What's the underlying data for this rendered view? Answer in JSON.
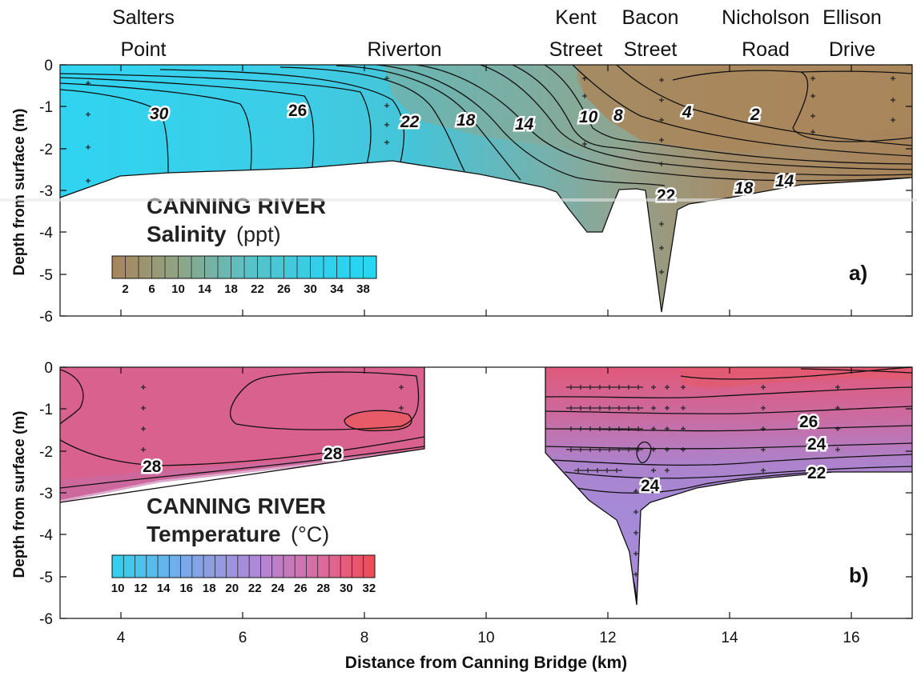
{
  "figure": {
    "x_axis_label": "Distance from Canning Bridge (km)",
    "x_ticks": [
      "4",
      "6",
      "8",
      "10",
      "12",
      "14",
      "16"
    ],
    "stations": [
      {
        "line1": "Salters",
        "line2": "Point",
        "km": 4.4
      },
      {
        "line1": "",
        "line2": "Riverton",
        "km": 8.1
      },
      {
        "line1": "Kent",
        "line2": "Street",
        "km": 11.6
      },
      {
        "line1": "Bacon",
        "line2": "Street",
        "km": 12.9
      },
      {
        "line1": "Nicholson",
        "line2": "Road",
        "km": 14.9
      },
      {
        "line1": "Ellison",
        "line2": "Drive",
        "km": 16.3
      }
    ]
  },
  "panel_a": {
    "title": "CANNING RIVER",
    "variable_bold": "Salinity",
    "variable_unit": "(ppt)",
    "panel_label": "a)",
    "y_axis_label": "Depth from surface (m)",
    "y_ticks": [
      "0",
      "-1",
      "-2",
      "-3",
      "-4",
      "-5",
      "-6"
    ],
    "colorbar_ticks": [
      "2",
      "6",
      "10",
      "14",
      "18",
      "22",
      "26",
      "30",
      "34",
      "38"
    ],
    "contour_labels": [
      "30",
      "26",
      "22",
      "18",
      "14",
      "10",
      "8",
      "4",
      "2",
      "22",
      "18",
      "14"
    ]
  },
  "panel_b": {
    "title": "CANNING RIVER",
    "variable_bold": "Temperature",
    "variable_unit": "(°C)",
    "panel_label": "b)",
    "y_axis_label": "Depth from surface (m)",
    "y_ticks": [
      "0",
      "-1",
      "-2",
      "-3",
      "-4",
      "-5",
      "-6"
    ],
    "colorbar_ticks": [
      "10",
      "12",
      "14",
      "16",
      "18",
      "20",
      "22",
      "24",
      "26",
      "28",
      "30",
      "32"
    ],
    "contour_labels": [
      "28",
      "28",
      "26",
      "24",
      "22",
      "24"
    ]
  },
  "chart_data": [
    {
      "type": "heatmap",
      "title": "CANNING RIVER Salinity (ppt)",
      "xlabel": "Distance from Canning Bridge (km)",
      "ylabel": "Depth from surface (m)",
      "xlim": [
        3,
        17
      ],
      "ylim": [
        -6,
        0
      ],
      "color_scale": {
        "min": 0,
        "max": 40,
        "step": 2,
        "low_color": "#a58455",
        "high_color": "#2ad3f0"
      },
      "contour_levels": [
        2,
        4,
        6,
        8,
        10,
        12,
        14,
        16,
        18,
        20,
        22,
        24,
        26,
        28,
        30
      ],
      "labeled_contours": [
        {
          "value": 30,
          "x": 4.4,
          "depth": -1.15
        },
        {
          "value": 26,
          "x": 6.8,
          "depth": -1.1
        },
        {
          "value": 22,
          "x": 8.6,
          "depth": -1.35
        },
        {
          "value": 18,
          "x": 9.5,
          "depth": -1.3
        },
        {
          "value": 14,
          "x": 10.6,
          "depth": -1.4
        },
        {
          "value": 10,
          "x": 11.7,
          "depth": -1.25
        },
        {
          "value": 8,
          "x": 12.4,
          "depth": -1.2
        },
        {
          "value": 4,
          "x": 13.4,
          "depth": -1.2
        },
        {
          "value": 2,
          "x": 14.9,
          "depth": -1.2
        },
        {
          "value": 22,
          "x": 13.0,
          "depth": -3.2
        },
        {
          "value": 18,
          "x": 14.6,
          "depth": -2.9
        },
        {
          "value": 14,
          "x": 15.3,
          "depth": -2.75
        }
      ],
      "riverbed_km": [
        3,
        4,
        5,
        6,
        7,
        8,
        8.5,
        9,
        10,
        11,
        11.2,
        11.6,
        11.8,
        12.0,
        12.3,
        12.5,
        12.6,
        12.9,
        13.0,
        13.3,
        14,
        15,
        16,
        17
      ],
      "riverbed_depth_m": [
        -3.25,
        -2.8,
        -2.7,
        -2.6,
        -2.45,
        -2.35,
        -2.3,
        -2.4,
        -2.7,
        -3.05,
        -3.15,
        -3.9,
        -4.0,
        -3.6,
        -3.05,
        -3.05,
        -3.3,
        -5.9,
        -3.8,
        -3.5,
        -3.25,
        -3.0,
        -2.85,
        -2.7
      ]
    },
    {
      "type": "heatmap",
      "title": "CANNING RIVER Temperature (°C)",
      "xlabel": "Distance from Canning Bridge (km)",
      "ylabel": "Depth from surface (m)",
      "xlim": [
        3,
        17
      ],
      "ylim": [
        -6,
        0
      ],
      "color_scale": {
        "min": 10,
        "max": 32,
        "step": 1,
        "low_color": "#2fd1ef",
        "high_color": "#ef4d55"
      },
      "contour_levels": [
        21,
        22,
        23,
        24,
        25,
        26,
        27,
        28,
        29,
        30
      ],
      "labeled_contours": [
        {
          "value": 28,
          "x": 4.1,
          "depth": -2.35
        },
        {
          "value": 28,
          "x": 7.3,
          "depth": -2.05
        },
        {
          "value": 26,
          "x": 16.1,
          "depth": -1.25
        },
        {
          "value": 24,
          "x": 16.1,
          "depth": -1.75
        },
        {
          "value": 22,
          "x": 16.1,
          "depth": -2.35
        },
        {
          "value": 24,
          "x": 12.7,
          "depth": -2.85
        }
      ],
      "no_data_km": [
        9.0,
        11.0
      ],
      "riverbed_km": [
        3,
        9,
        11,
        11.5,
        12.3,
        12.55,
        12.7,
        13.3,
        14,
        16,
        17
      ],
      "riverbed_depth_m": [
        -3.2,
        -1.9,
        -2.1,
        -2.8,
        -3.3,
        -5.7,
        -3.5,
        -3.0,
        -2.65,
        -2.6,
        -2.55
      ]
    }
  ]
}
